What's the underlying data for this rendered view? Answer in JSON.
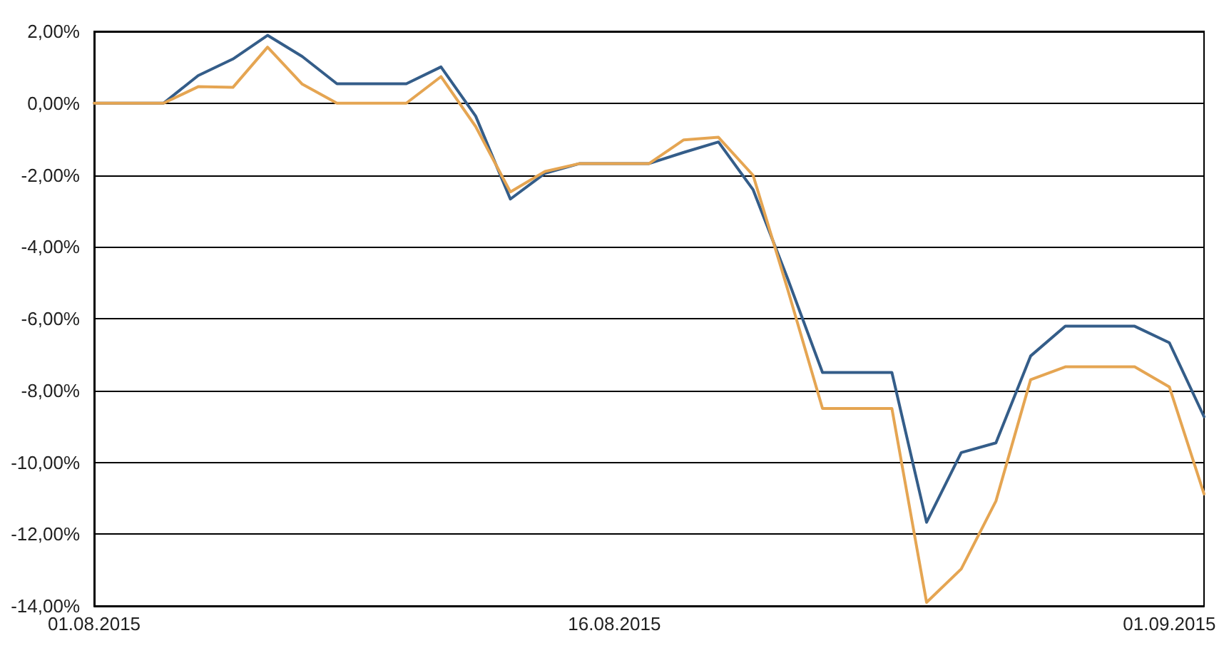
{
  "chart_data": {
    "type": "line",
    "x": [
      "2015-08-01",
      "2015-08-02",
      "2015-08-03",
      "2015-08-04",
      "2015-08-05",
      "2015-08-06",
      "2015-08-07",
      "2015-08-08",
      "2015-08-09",
      "2015-08-10",
      "2015-08-11",
      "2015-08-12",
      "2015-08-13",
      "2015-08-14",
      "2015-08-15",
      "2015-08-16",
      "2015-08-17",
      "2015-08-18",
      "2015-08-19",
      "2015-08-20",
      "2015-08-21",
      "2015-08-22",
      "2015-08-23",
      "2015-08-24",
      "2015-08-25",
      "2015-08-26",
      "2015-08-27",
      "2015-08-28",
      "2015-08-29",
      "2015-08-30",
      "2015-08-31",
      "2015-09-01",
      "2015-09-02"
    ],
    "series": [
      {
        "color": "#345d89",
        "values": [
          0,
          0,
          0,
          0.77,
          1.23,
          1.89,
          1.3,
          0.54,
          0.54,
          0.54,
          1.01,
          -0.36,
          -2.67,
          -1.95,
          -1.68,
          -1.68,
          -1.68,
          -1.37,
          -1.08,
          -2.41,
          -4.9,
          -7.5,
          -7.5,
          -7.5,
          -11.67,
          -9.73,
          -9.46,
          -7.04,
          -6.21,
          -6.21,
          -6.21,
          -6.67,
          -8.73
        ]
      },
      {
        "color": "#e5a552",
        "values": [
          0,
          0,
          0,
          0.46,
          0.44,
          1.56,
          0.53,
          0,
          0,
          0,
          0.74,
          -0.65,
          -2.47,
          -1.9,
          -1.68,
          -1.68,
          -1.68,
          -1.02,
          -0.95,
          -2.01,
          -5.2,
          -8.5,
          -8.5,
          -8.5,
          -13.9,
          -12.97,
          -11.08,
          -7.7,
          -7.34,
          -7.34,
          -7.34,
          -7.9,
          -10.88
        ]
      }
    ],
    "xlim": [
      "2015-08-01",
      "2015-09-02"
    ],
    "xticks": [
      {
        "value": "2015-08-01",
        "label": "01.08.2015"
      },
      {
        "value": "2015-08-16",
        "label": "16.08.2015"
      },
      {
        "value": "2015-09-01",
        "label": "01.09.2015"
      }
    ],
    "ylim": [
      -14,
      2
    ],
    "yticks": [
      {
        "value": -14,
        "label": "-14,00%"
      },
      {
        "value": -12,
        "label": "-12,00%"
      },
      {
        "value": -10,
        "label": "-10,00%"
      },
      {
        "value": -8,
        "label": "-8,00%"
      },
      {
        "value": -6,
        "label": "-6,00%"
      },
      {
        "value": -4,
        "label": "-4,00%"
      },
      {
        "value": -2,
        "label": "-2,00%"
      },
      {
        "value": 0,
        "label": "0,00%"
      },
      {
        "value": 2,
        "label": "2,00%"
      }
    ],
    "grid": "y",
    "marker": "none",
    "line_style": "solid"
  }
}
